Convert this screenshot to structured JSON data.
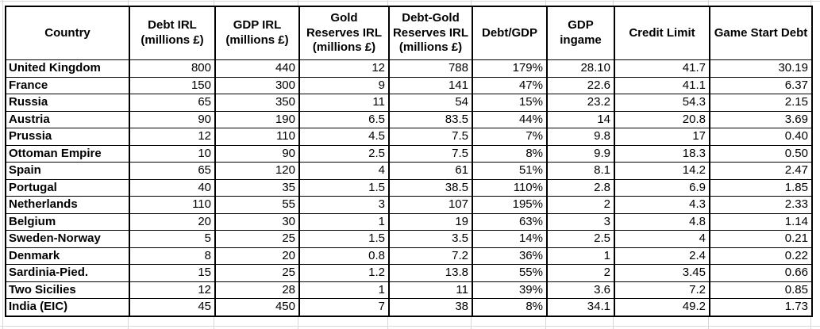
{
  "colors": {
    "table_border": "#000000",
    "sheet_gridline": "#d8d8d8",
    "background": "#ffffff",
    "text": "#000000"
  },
  "table": {
    "headers": [
      "Country",
      "Debt IRL (millions £)",
      "GDP IRL (millions £)",
      "Gold Reserves IRL (millions £)",
      "Debt-Gold Reserves IRL (millions £)",
      "Debt/GDP",
      "GDP ingame",
      "Credit Limit",
      "Game Start Debt"
    ],
    "rows": [
      [
        "United Kingdom",
        "800",
        "440",
        "12",
        "788",
        "179%",
        "28.10",
        "41.7",
        "30.19"
      ],
      [
        "France",
        "150",
        "300",
        "9",
        "141",
        "47%",
        "22.6",
        "41.1",
        "6.37"
      ],
      [
        "Russia",
        "65",
        "350",
        "11",
        "54",
        "15%",
        "23.2",
        "54.3",
        "2.15"
      ],
      [
        "Austria",
        "90",
        "190",
        "6.5",
        "83.5",
        "44%",
        "14",
        "20.8",
        "3.69"
      ],
      [
        "Prussia",
        "12",
        "110",
        "4.5",
        "7.5",
        "7%",
        "9.8",
        "17",
        "0.40"
      ],
      [
        "Ottoman Empire",
        "10",
        "90",
        "2.5",
        "7.5",
        "8%",
        "9.9",
        "18.3",
        "0.50"
      ],
      [
        "Spain",
        "65",
        "120",
        "4",
        "61",
        "51%",
        "8.1",
        "14.2",
        "2.47"
      ],
      [
        "Portugal",
        "40",
        "35",
        "1.5",
        "38.5",
        "110%",
        "2.8",
        "6.9",
        "1.85"
      ],
      [
        "Netherlands",
        "110",
        "55",
        "3",
        "107",
        "195%",
        "2",
        "4.3",
        "2.33"
      ],
      [
        "Belgium",
        "20",
        "30",
        "1",
        "19",
        "63%",
        "3",
        "4.8",
        "1.14"
      ],
      [
        "Sweden-Norway",
        "5",
        "25",
        "1.5",
        "3.5",
        "14%",
        "2.5",
        "4",
        "0.21"
      ],
      [
        "Denmark",
        "8",
        "20",
        "0.8",
        "7.2",
        "36%",
        "1",
        "2.4",
        "0.22"
      ],
      [
        "Sardinia-Pied.",
        "15",
        "25",
        "1.2",
        "13.8",
        "55%",
        "2",
        "3.45",
        "0.66"
      ],
      [
        "Two Sicilies",
        "12",
        "28",
        "1",
        "11",
        "39%",
        "3.6",
        "7.2",
        "0.85"
      ],
      [
        "India (EIC)",
        "45",
        "450",
        "7",
        "38",
        "8%",
        "34.1",
        "49.2",
        "1.73"
      ]
    ]
  }
}
